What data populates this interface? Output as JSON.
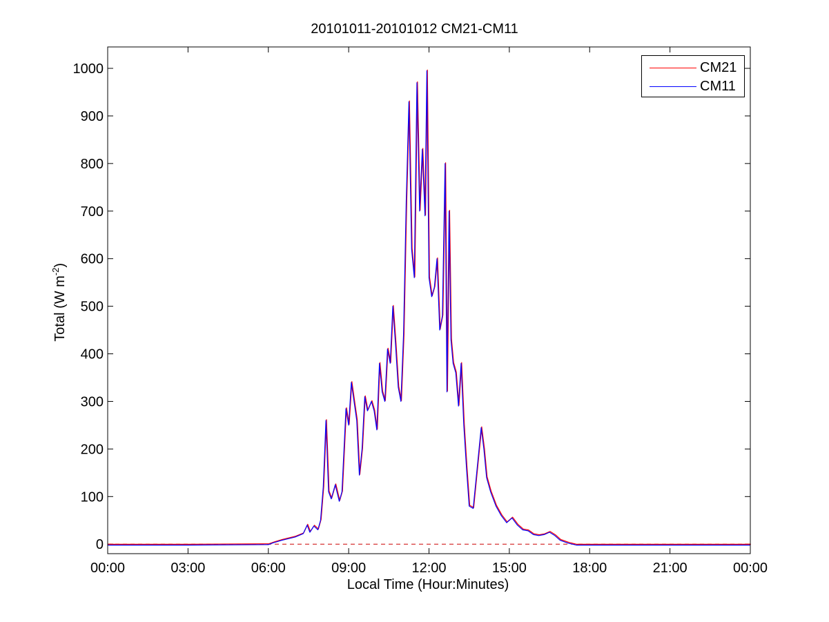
{
  "chart_data": {
    "type": "line",
    "title": "20101011-20101012 CM21-CM11",
    "xlabel": "Local Time (Hour:Minutes)",
    "ylabel_main": "Total (W m",
    "ylabel_sup": "-2",
    "ylabel_end": ")",
    "xlim": [
      0,
      24
    ],
    "ylim": [
      -20,
      1045
    ],
    "xticks": [
      0,
      3,
      6,
      9,
      12,
      15,
      18,
      21,
      24
    ],
    "xtick_labels": [
      "00:00",
      "03:00",
      "06:00",
      "09:00",
      "12:00",
      "15:00",
      "18:00",
      "21:00",
      "00:00"
    ],
    "yticks": [
      0,
      100,
      200,
      300,
      400,
      500,
      600,
      700,
      800,
      900,
      1000
    ],
    "ytick_labels": [
      "0",
      "100",
      "200",
      "300",
      "400",
      "500",
      "600",
      "700",
      "800",
      "900",
      "1000"
    ],
    "grid": false,
    "legend_position": "top-right",
    "zero_reference_line": true,
    "series": [
      {
        "name": "CM21",
        "color": "#ff0000"
      },
      {
        "name": "CM11",
        "color": "#0000ff"
      }
    ],
    "x": [
      0,
      3,
      6,
      6.2,
      6.5,
      7.0,
      7.3,
      7.45,
      7.55,
      7.7,
      7.85,
      7.95,
      8.05,
      8.15,
      8.25,
      8.35,
      8.5,
      8.65,
      8.75,
      8.9,
      9.0,
      9.1,
      9.2,
      9.3,
      9.4,
      9.5,
      9.6,
      9.7,
      9.85,
      9.95,
      10.05,
      10.15,
      10.25,
      10.35,
      10.45,
      10.55,
      10.65,
      10.75,
      10.85,
      10.95,
      11.05,
      11.15,
      11.25,
      11.35,
      11.45,
      11.55,
      11.65,
      11.75,
      11.85,
      11.92,
      12.0,
      12.1,
      12.2,
      12.3,
      12.4,
      12.5,
      12.6,
      12.67,
      12.75,
      12.82,
      12.9,
      13.0,
      13.1,
      13.2,
      13.3,
      13.4,
      13.5,
      13.65,
      13.8,
      13.95,
      14.05,
      14.15,
      14.3,
      14.5,
      14.7,
      14.9,
      15.1,
      15.3,
      15.5,
      15.7,
      15.9,
      16.1,
      16.3,
      16.5,
      16.7,
      16.9,
      17.2,
      17.5,
      18,
      21,
      24
    ],
    "values": [
      -2,
      -2,
      -1,
      3,
      8,
      15,
      22,
      40,
      25,
      38,
      30,
      50,
      120,
      260,
      110,
      95,
      125,
      90,
      110,
      285,
      250,
      340,
      300,
      260,
      145,
      200,
      310,
      280,
      300,
      280,
      240,
      380,
      320,
      300,
      410,
      380,
      500,
      420,
      330,
      300,
      440,
      720,
      930,
      620,
      560,
      970,
      700,
      830,
      690,
      995,
      560,
      520,
      540,
      600,
      450,
      480,
      800,
      320,
      700,
      430,
      380,
      360,
      290,
      380,
      250,
      160,
      80,
      75,
      160,
      245,
      200,
      140,
      110,
      80,
      60,
      45,
      55,
      40,
      30,
      28,
      20,
      18,
      20,
      25,
      18,
      8,
      2,
      -2,
      -2,
      -2,
      -2
    ]
  }
}
